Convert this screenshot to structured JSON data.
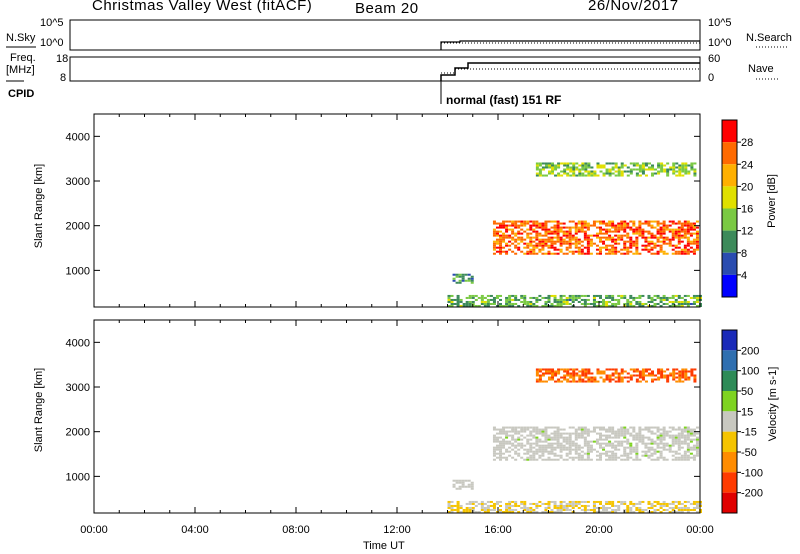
{
  "header": {
    "station": "Christmas Valley West (fitACF)",
    "beam": "Beam 20",
    "date": "26/Nov/2017"
  },
  "panels": {
    "nsky_label": "N.Sky",
    "nsky_ticks": [
      "10^5",
      "10^0"
    ],
    "nsearch_ticks": [
      "10^5",
      "10^0"
    ],
    "nsearch_label": "N.Search",
    "freq_label_1": "Freq.",
    "freq_label_2": "[MHz]",
    "freq_ticks": [
      "18",
      "8"
    ],
    "nave_ticks": [
      "60",
      "0"
    ],
    "nave_label": "Nave",
    "cpid_label": "CPID",
    "cpid_text": "normal (fast) 151 RF"
  },
  "chart_data": [
    {
      "type": "heatmap",
      "name": "power",
      "ylabel": "Slant Range [km]",
      "yticks": [
        "4000",
        "3000",
        "2000",
        "1000"
      ],
      "ylim": [
        180,
        4500
      ],
      "colorbar_label": "Power [dB]",
      "colorbar_ticks": [
        "28",
        "24",
        "20",
        "16",
        "12",
        "8",
        "4"
      ],
      "colorbar_colors": [
        "#ff0000",
        "#ff6a00",
        "#ffb000",
        "#e0e000",
        "#7ac943",
        "#3c8a5a",
        "#2a4cb0",
        "#0000ff"
      ],
      "xlim": [
        "00:00",
        "24:00"
      ],
      "echo_regions": [
        {
          "t_start": 14.0,
          "t_end": 24.0,
          "r_min": 180,
          "r_max": 450,
          "value": 10
        },
        {
          "t_start": 15.8,
          "t_end": 23.9,
          "r_min": 1350,
          "r_max": 2100,
          "value": 24
        },
        {
          "t_start": 17.5,
          "t_end": 23.8,
          "r_min": 3100,
          "r_max": 3400,
          "value": 12
        },
        {
          "t_start": 14.2,
          "t_end": 15.0,
          "r_min": 700,
          "r_max": 900,
          "value": 8
        }
      ]
    },
    {
      "type": "heatmap",
      "name": "velocity",
      "ylabel": "Slant Range [km]",
      "yticks": [
        "4000",
        "3000",
        "2000",
        "1000"
      ],
      "ylim": [
        180,
        4500
      ],
      "colorbar_label": "Velocity [m s-1]",
      "colorbar_ticks": [
        "200",
        "100",
        "50",
        "15",
        "-15",
        "-50",
        "-100",
        "-200"
      ],
      "colorbar_colors": [
        "#1a2ab8",
        "#2f6fb0",
        "#2e8b57",
        "#7ed321",
        "#c8c8c0",
        "#f5c400",
        "#ff8c00",
        "#ff3b00",
        "#e00000"
      ],
      "xlim": [
        "00:00",
        "24:00"
      ],
      "xticks": [
        "00:00",
        "04:00",
        "08:00",
        "12:00",
        "16:00",
        "20:00",
        "00:00"
      ],
      "xlabel": "Time UT",
      "echo_regions": [
        {
          "t_start": 14.0,
          "t_end": 24.0,
          "r_min": 180,
          "r_max": 450,
          "value": -40
        },
        {
          "t_start": 15.8,
          "t_end": 23.9,
          "r_min": 1350,
          "r_max": 2100,
          "value": 0
        },
        {
          "t_start": 17.5,
          "t_end": 23.8,
          "r_min": 3100,
          "r_max": 3400,
          "value": -150
        },
        {
          "t_start": 14.2,
          "t_end": 15.0,
          "r_min": 700,
          "r_max": 900,
          "value": 0
        }
      ]
    }
  ]
}
